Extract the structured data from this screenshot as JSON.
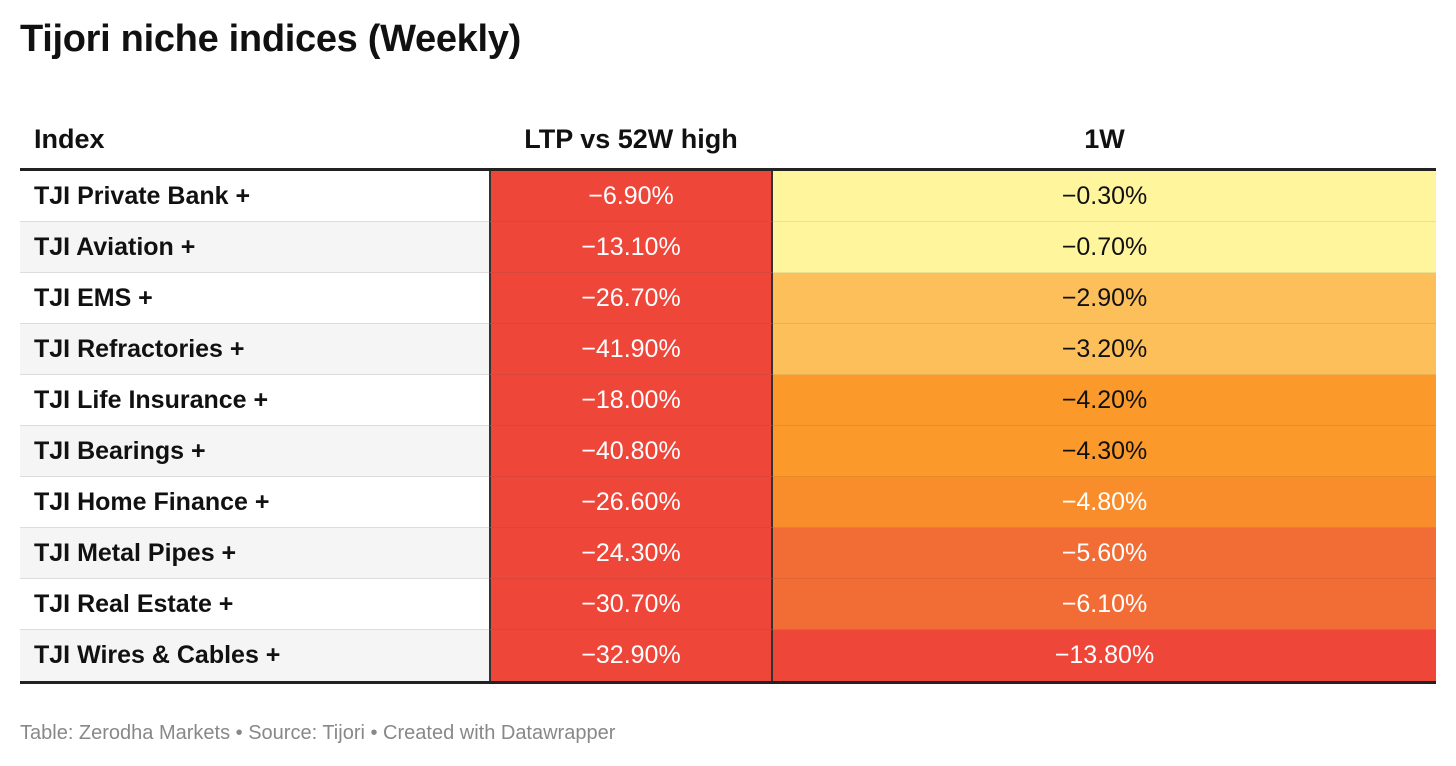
{
  "title": "Tijori niche indices (Weekly)",
  "footer": "Table: Zerodha Markets • Source: Tijori • Created with Datawrapper",
  "chart_data": {
    "type": "table",
    "columns": [
      "Index",
      "LTP vs 52W high",
      "1W"
    ],
    "rows": [
      {
        "index": "TJI Private Bank +",
        "ltp": "−6.90%",
        "w1": "−0.30%",
        "ltp_value": -6.9,
        "w1_value": -0.3,
        "w1_color": "#fff59d",
        "w1_text_color": "#111111"
      },
      {
        "index": "TJI Aviation +",
        "ltp": "−13.10%",
        "w1": "−0.70%",
        "ltp_value": -13.1,
        "w1_value": -0.7,
        "w1_color": "#fff59d",
        "w1_text_color": "#111111"
      },
      {
        "index": "TJI EMS +",
        "ltp": "−26.70%",
        "w1": "−2.90%",
        "ltp_value": -26.7,
        "w1_value": -2.9,
        "w1_color": "#fdbf5a",
        "w1_text_color": "#111111"
      },
      {
        "index": "TJI Refractories +",
        "ltp": "−41.90%",
        "w1": "−3.20%",
        "ltp_value": -41.9,
        "w1_value": -3.2,
        "w1_color": "#fdbf5a",
        "w1_text_color": "#111111"
      },
      {
        "index": "TJI Life Insurance +",
        "ltp": "−18.00%",
        "w1": "−4.20%",
        "ltp_value": -18.0,
        "w1_value": -4.2,
        "w1_color": "#fb9a2b",
        "w1_text_color": "#111111"
      },
      {
        "index": "TJI Bearings +",
        "ltp": "−40.80%",
        "w1": "−4.30%",
        "ltp_value": -40.8,
        "w1_value": -4.3,
        "w1_color": "#fb9a2b",
        "w1_text_color": "#111111"
      },
      {
        "index": "TJI Home Finance +",
        "ltp": "−26.60%",
        "w1": "−4.80%",
        "ltp_value": -26.6,
        "w1_value": -4.8,
        "w1_color": "#f98d2c",
        "w1_text_color": "#ffffff"
      },
      {
        "index": "TJI Metal Pipes +",
        "ltp": "−24.30%",
        "w1": "−5.60%",
        "ltp_value": -24.3,
        "w1_value": -5.6,
        "w1_color": "#f26d36",
        "w1_text_color": "#ffffff"
      },
      {
        "index": "TJI Real Estate +",
        "ltp": "−30.70%",
        "w1": "−6.10%",
        "ltp_value": -30.7,
        "w1_value": -6.1,
        "w1_color": "#f26d36",
        "w1_text_color": "#ffffff"
      },
      {
        "index": "TJI Wires & Cables +",
        "ltp": "−32.90%",
        "w1": "−13.80%",
        "ltp_value": -32.9,
        "w1_value": -13.8,
        "w1_color": "#ef463a",
        "w1_text_color": "#ffffff"
      }
    ],
    "ltp_color": "#ef463a"
  }
}
